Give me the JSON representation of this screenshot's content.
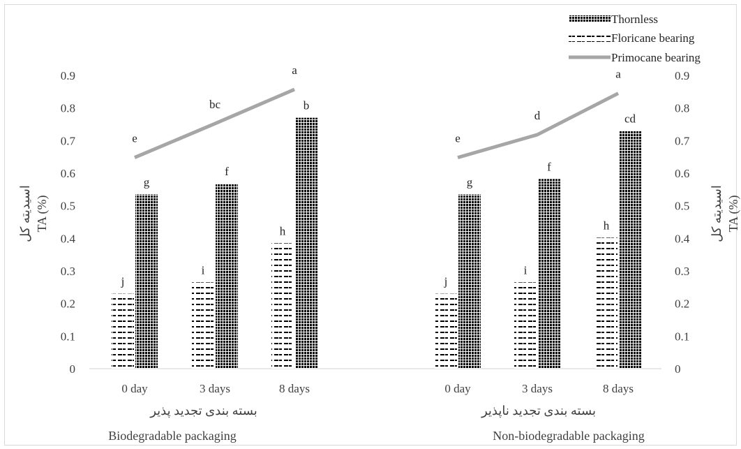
{
  "chart_data": {
    "type": "bar",
    "y_left": {
      "ticks": [
        "0",
        "0.1",
        "0.2",
        "0.3",
        "0.4",
        "0.5",
        "0.6",
        "0.7",
        "0.8",
        "0.9"
      ],
      "ylim": [
        0,
        0.9
      ]
    },
    "y_right": {
      "ticks": [
        "0",
        "0.1",
        "0.2",
        "0.3",
        "0.4",
        "0.5",
        "0.6",
        "0.7",
        "0.8",
        "0.9"
      ],
      "ylim": [
        0,
        0.9
      ]
    },
    "ylabel_left": [
      "اسیدیته کل",
      "TA (%)"
    ],
    "ylabel_right": [
      "اسیدیته کل",
      "TA (%)"
    ],
    "legend": {
      "position": "top-right",
      "entries": [
        "Thornless",
        "Floricane bearing",
        "Primocane bearing"
      ]
    },
    "groups": [
      {
        "label_fa": "بسته بندی تجدید پذیر",
        "label_en": "Biodegradable packaging",
        "categories": [
          "0 day",
          "3 days",
          "8 days"
        ],
        "series": [
          {
            "name": "Floricane bearing",
            "values": [
              0.23,
              0.265,
              0.385
            ],
            "sig": [
              "j",
              "i",
              "h"
            ]
          },
          {
            "name": "Thornless",
            "values": [
              0.535,
              0.568,
              0.77
            ],
            "sig": [
              "g",
              "f",
              "b"
            ]
          },
          {
            "name": "Primocane bearing",
            "values": [
              0.648,
              0.752,
              0.857
            ],
            "sig": [
              "e",
              "bc",
              "a"
            ]
          }
        ]
      },
      {
        "label_fa": "بسته بندی تجدید ناپذیر",
        "label_en": "Non-biodegradable packaging",
        "categories": [
          "0 day",
          "3 days",
          "8 days"
        ],
        "series": [
          {
            "name": "Floricane bearing",
            "values": [
              0.23,
              0.265,
              0.402
            ],
            "sig": [
              "j",
              "i",
              "h"
            ]
          },
          {
            "name": "Thornless",
            "values": [
              0.535,
              0.582,
              0.73
            ],
            "sig": [
              "g",
              "f",
              "cd"
            ]
          },
          {
            "name": "Primocane bearing",
            "values": [
              0.648,
              0.718,
              0.845
            ],
            "sig": [
              "e",
              "d",
              "a"
            ]
          }
        ]
      }
    ]
  }
}
